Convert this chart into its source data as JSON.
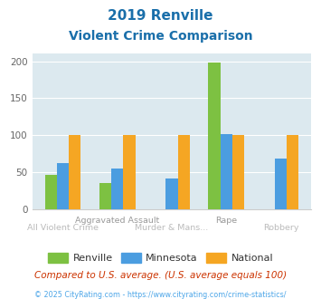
{
  "title_line1": "2019 Renville",
  "title_line2": "Violent Crime Comparison",
  "categories": [
    "All Violent Crime",
    "Aggravated Assault",
    "Murder & Mans...",
    "Rape",
    "Robbery"
  ],
  "renville": [
    46,
    35,
    0,
    198,
    0
  ],
  "minnesota": [
    63,
    55,
    42,
    102,
    68
  ],
  "national": [
    100,
    100,
    100,
    100,
    100
  ],
  "renville_color": "#7dc142",
  "minnesota_color": "#4b9de0",
  "national_color": "#f5a623",
  "bg_color": "#dce9ef",
  "title_color": "#1a6faa",
  "ylim": [
    0,
    210
  ],
  "yticks": [
    0,
    50,
    100,
    150,
    200
  ],
  "footer_note": "Compared to U.S. average. (U.S. average equals 100)",
  "footer_copy": "© 2025 CityRating.com - https://www.cityrating.com/crime-statistics/",
  "legend_labels": [
    "Renville",
    "Minnesota",
    "National"
  ],
  "top_xlabels": [
    "",
    "Aggravated Assault",
    "",
    "Rape",
    ""
  ],
  "bot_xlabels": [
    "All Violent Crime",
    "",
    "Murder & Mans...",
    "",
    "Robbery"
  ],
  "top_xlabel_color": "#999999",
  "bot_xlabel_color": "#bbbbbb"
}
